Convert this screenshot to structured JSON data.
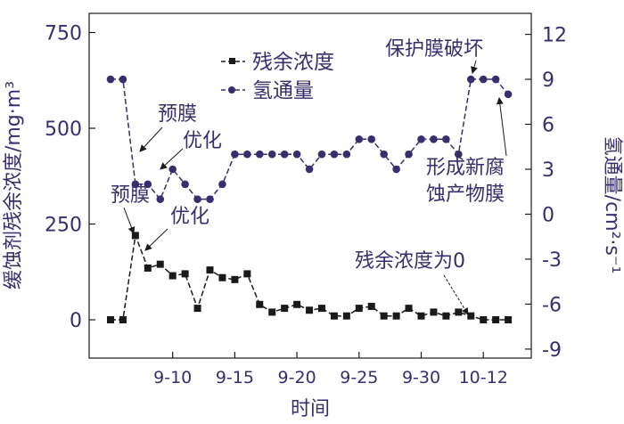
{
  "chart_data": {
    "type": "line",
    "xlabel": "时间",
    "ylabel_left": "缓蚀剂残余浓度/mg·m³",
    "ylabel_right": "氢通量/cm²·s⁻¹",
    "ylim_left": [
      -100,
      800
    ],
    "ylim_right": [
      -9.6,
      13.4
    ],
    "yticks_left": [
      0,
      250,
      500,
      750
    ],
    "yticks_right": [
      -9,
      -6,
      -3,
      0,
      3,
      6,
      9,
      12
    ],
    "x_positions": [
      0,
      1,
      2,
      3,
      4,
      5,
      6,
      7,
      8,
      9,
      10,
      11,
      12,
      13,
      14,
      15,
      16,
      17,
      18,
      19,
      20,
      21,
      22,
      23,
      24,
      25,
      26,
      27,
      28,
      29,
      30,
      31,
      32
    ],
    "xticks": [
      {
        "index": 5,
        "label": "9-10"
      },
      {
        "index": 10,
        "label": "9-15"
      },
      {
        "index": 15,
        "label": "9-20"
      },
      {
        "index": 20,
        "label": "9-25"
      },
      {
        "index": 25,
        "label": "9-30"
      },
      {
        "index": 30,
        "label": "10-12"
      }
    ],
    "series": [
      {
        "name": "残余浓度",
        "axis": "left",
        "marker": "square",
        "values": [
          0,
          0,
          220,
          135,
          145,
          115,
          120,
          30,
          130,
          110,
          105,
          120,
          40,
          20,
          30,
          40,
          25,
          30,
          10,
          10,
          30,
          35,
          10,
          10,
          30,
          10,
          20,
          10,
          20,
          10,
          0,
          0,
          0
        ]
      },
      {
        "name": "氢通量",
        "axis": "right",
        "marker": "circle",
        "values": [
          9,
          9,
          2,
          2,
          1,
          3,
          2,
          1,
          1,
          2,
          4,
          4,
          4,
          4,
          4,
          4,
          3,
          4,
          4,
          4,
          5,
          5,
          4,
          3,
          4,
          5,
          5,
          5,
          4,
          9,
          9,
          9,
          8
        ]
      }
    ],
    "legend_position": "top-center",
    "annotations": [
      "预膜",
      "优化",
      "预膜",
      "优化",
      "保护膜破坏",
      "形成新腐",
      "蚀产物膜",
      "残余浓度为0"
    ]
  },
  "colors": {
    "line": "#1a1a1a",
    "series_right": "#3a2d6e",
    "text": "#3a2d6e"
  }
}
